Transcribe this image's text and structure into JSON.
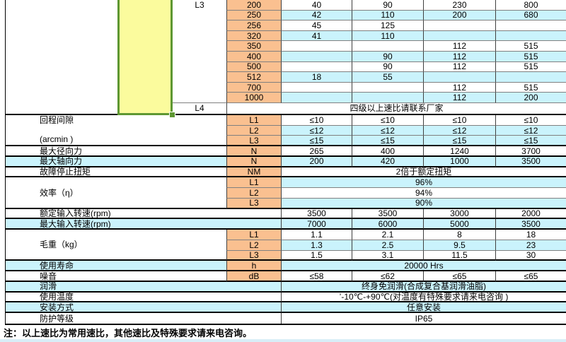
{
  "palette": {
    "cell_orange": "#FAC090",
    "cell_cyan": "#CAF3FC",
    "selected_yellow": "#FBFB9D",
    "selection_green": "#5E9732",
    "grid_gray": "#808080",
    "grid_dark": "#404040"
  },
  "sheet": {
    "stage_labels": {
      "l3": "L3",
      "l4": "L4"
    },
    "ratio_rows": [
      {
        "ratio": "200",
        "cells": [
          "40",
          "90",
          "230",
          "800"
        ],
        "shade": "white"
      },
      {
        "ratio": "250",
        "cells": [
          "42",
          "110",
          "200",
          "680"
        ],
        "shade": "cyan"
      },
      {
        "ratio": "256",
        "cells": [
          "45",
          "125",
          "",
          ""
        ],
        "shade": "white"
      },
      {
        "ratio": "320",
        "cells": [
          "41",
          "110",
          "",
          ""
        ],
        "shade": "cyan"
      },
      {
        "ratio": "350",
        "cells": [
          "",
          "",
          "112",
          "515"
        ],
        "shade": "white"
      },
      {
        "ratio": "400",
        "cells": [
          "",
          "90",
          "112",
          "515"
        ],
        "shade": "cyan"
      },
      {
        "ratio": "500",
        "cells": [
          "",
          "90",
          "112",
          "515"
        ],
        "shade": "white"
      },
      {
        "ratio": "512",
        "cells": [
          "18",
          "55",
          "",
          ""
        ],
        "shade": "cyan"
      },
      {
        "ratio": "700",
        "cells": [
          "",
          "",
          "112",
          "515"
        ],
        "shade": "white"
      },
      {
        "ratio": "1000",
        "cells": [
          "",
          "",
          "112",
          "200"
        ],
        "shade": "cyan"
      }
    ],
    "l4_row": {
      "label": "L4",
      "note": "四级以上速比请联系厂家"
    },
    "spec_rows": [
      {
        "id": "backlash-l1",
        "label": {
          "lines": [
            "回程间隙",
            "(arcmin )"
          ],
          "span": 3,
          "to": "C",
          "shade": "white"
        },
        "unit": "L1",
        "cells": [
          "≤10",
          "≤10",
          "≤10",
          "≤10"
        ],
        "shade": "white",
        "secTop": true
      },
      {
        "id": "backlash-l2",
        "unit": "L2",
        "cells": [
          "≤12",
          "≤12",
          "≤12",
          "≤12"
        ],
        "shade": "cyan"
      },
      {
        "id": "backlash-l3",
        "unit": "L3",
        "cells": [
          "≤15",
          "≤15",
          "≤15",
          "≤15"
        ],
        "shade": "cyan"
      },
      {
        "id": "max-radial-force",
        "label": {
          "lines": [
            "最大径向力"
          ],
          "span": 1,
          "to": "C",
          "shade": "white"
        },
        "unit": "N",
        "cells": [
          "265",
          "400",
          "1240",
          "3700"
        ],
        "shade": "white",
        "secTop": true
      },
      {
        "id": "max-axial-force",
        "label": {
          "lines": [
            "最大轴向力"
          ],
          "span": 1,
          "to": "C",
          "shade": "cyan"
        },
        "unit": "N",
        "cells": [
          "200",
          "420",
          "1000",
          "3500"
        ],
        "shade": "cyan",
        "secTop": true
      },
      {
        "id": "emergency-stop-torque",
        "label": {
          "lines": [
            "故障停止扭矩"
          ],
          "span": 1,
          "to": "C",
          "shade": "white"
        },
        "unit": "NM",
        "merged": "2倍于额定扭矩",
        "shade": "white",
        "secTop": true
      },
      {
        "id": "efficiency-l1",
        "label": {
          "lines": [
            "效率（η）"
          ],
          "span": 3,
          "to": "C",
          "shade": "white"
        },
        "unit": "L1",
        "merged": "96%",
        "shade": "cyan",
        "secTop": true
      },
      {
        "id": "efficiency-l2",
        "unit": "L2",
        "merged": "94%",
        "shade": "white"
      },
      {
        "id": "efficiency-l3",
        "unit": "L3",
        "merged": "90%",
        "shade": "cyan"
      },
      {
        "id": "rated-input-speed",
        "label": {
          "lines": [
            "额定输入转速(rpm)"
          ],
          "span": 1,
          "to": "D",
          "shade": "white"
        },
        "cells": [
          "3500",
          "3500",
          "3000",
          "2000"
        ],
        "shade": "white",
        "secTop": true
      },
      {
        "id": "max-input-speed",
        "label": {
          "lines": [
            "最大输入转速(rpm)"
          ],
          "span": 1,
          "to": "D",
          "shade": "cyan"
        },
        "cells": [
          "7000",
          "6000",
          "5000",
          "3500"
        ],
        "shade": "cyan",
        "secTop": true
      },
      {
        "id": "weight-l1",
        "label": {
          "lines": [
            "毛重（kg）"
          ],
          "span": 3,
          "to": "C",
          "shade": "white"
        },
        "unit": "L1",
        "cells": [
          "1.1",
          "2.1",
          "8",
          "18"
        ],
        "shade": "white",
        "secTop": true
      },
      {
        "id": "weight-l2",
        "unit": "L2",
        "cells": [
          "1.3",
          "2.5",
          "9.5",
          "23"
        ],
        "shade": "cyan"
      },
      {
        "id": "weight-l3",
        "unit": "L3",
        "cells": [
          "1.5",
          "3.1",
          "11.5",
          "30"
        ],
        "shade": "white"
      },
      {
        "id": "service-life",
        "label": {
          "lines": [
            "使用寿命"
          ],
          "span": 1,
          "to": "C",
          "shade": "cyan"
        },
        "unit": "h",
        "merged": "20000 Hrs",
        "shade": "cyan",
        "secTop": true
      },
      {
        "id": "noise",
        "label": {
          "lines": [
            "噪音"
          ],
          "span": 1,
          "to": "C",
          "shade": "white"
        },
        "unit": "dB",
        "cells": [
          "≤58",
          "≤62",
          "≤65",
          "≤65"
        ],
        "shade": "white",
        "secTop": true
      },
      {
        "id": "lubrication",
        "label": {
          "lines": [
            "润滑"
          ],
          "span": 1,
          "to": "D",
          "shade": "cyan"
        },
        "merged": "终身免润滑(合成复合基润滑油脂)",
        "shade": "cyan",
        "secTop": true
      },
      {
        "id": "operating-temperature",
        "label": {
          "lines": [
            "使用温度"
          ],
          "span": 1,
          "to": "D",
          "shade": "white"
        },
        "merged": "’-10℃-+90℃(对温度有特殊要求请来电咨询 )",
        "shade": "white",
        "secTop": true
      },
      {
        "id": "mounting",
        "label": {
          "lines": [
            "安装方式"
          ],
          "span": 1,
          "to": "D",
          "shade": "cyan"
        },
        "merged": "任意安装",
        "shade": "cyan",
        "secTop": true
      },
      {
        "id": "protection-class",
        "label": {
          "lines": [
            "防护等级"
          ],
          "span": 1,
          "to": "D",
          "shade": "white"
        },
        "merged": "IP65",
        "shade": "white",
        "secTop": true
      }
    ],
    "footnote": "注：以上速比为常用速比，其他速比及特殊要求请来电咨询。"
  }
}
